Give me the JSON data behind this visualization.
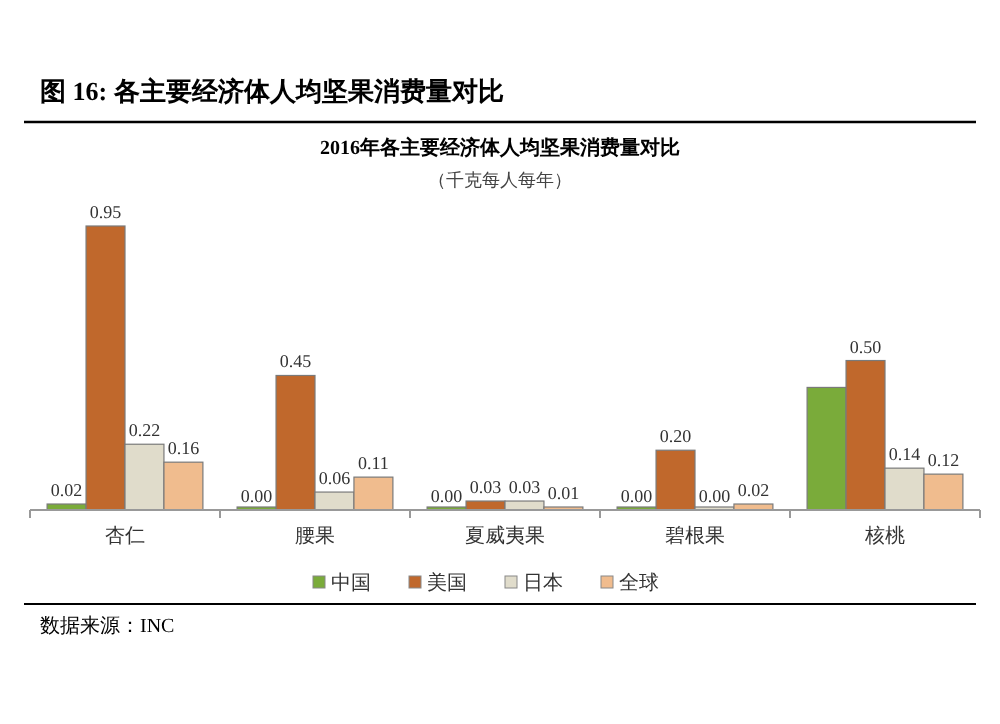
{
  "chart_data": {
    "type": "bar",
    "title": "2016年各主要经济体人均坚果消费量对比",
    "subtitle": "（千克每人每年）",
    "annotations": [
      "图 16: 各主要经济体人均坚果消费量对比",
      "数据来源：INC"
    ],
    "categories": [
      "杏仁",
      "腰果",
      "夏威夷果",
      "碧根果",
      "核桃"
    ],
    "series": [
      {
        "name": "中国",
        "color": "#7aab3a",
        "values": [
          0.02,
          0.0,
          0.0,
          0.0,
          0.41
        ],
        "value_labels": [
          "0.02",
          "0.00",
          "0.00",
          "0.00",
          null
        ]
      },
      {
        "name": "美国",
        "color": "#c0682c",
        "values": [
          0.95,
          0.45,
          0.03,
          0.2,
          0.5
        ],
        "value_labels": [
          "0.95",
          "0.45",
          "0.03",
          "0.20",
          "0.50"
        ]
      },
      {
        "name": "日本",
        "color": "#e0dccb",
        "values": [
          0.22,
          0.06,
          0.03,
          0.0,
          0.14
        ],
        "value_labels": [
          "0.22",
          "0.06",
          "0.03",
          "0.00",
          "0.14"
        ]
      },
      {
        "name": "全球",
        "color": "#f0bc8e",
        "values": [
          0.16,
          0.11,
          0.01,
          0.02,
          0.12
        ],
        "value_labels": [
          "0.16",
          "0.11",
          "0.01",
          "0.02",
          "0.12"
        ]
      }
    ],
    "legend": "bottom"
  }
}
